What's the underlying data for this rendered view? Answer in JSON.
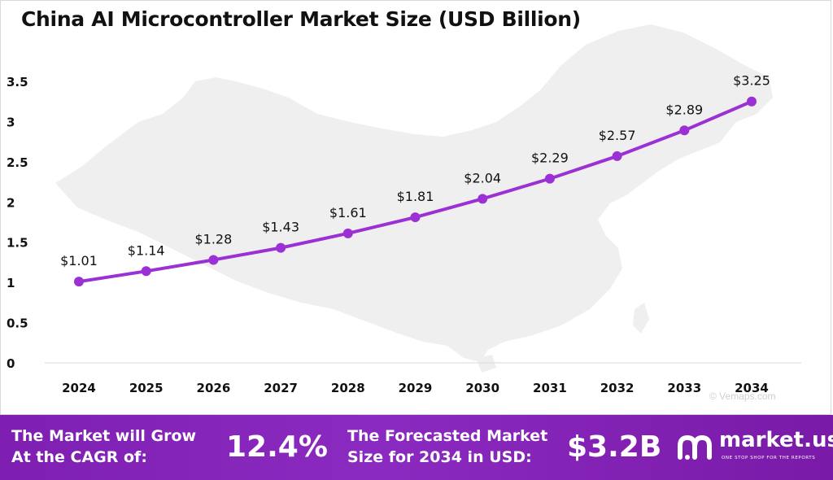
{
  "chart_data": {
    "type": "line",
    "title": "China AI Microcontroller Market Size (USD Billion)",
    "xlabel": "",
    "ylabel": "",
    "categories": [
      "2024",
      "2025",
      "2026",
      "2027",
      "2028",
      "2029",
      "2030",
      "2031",
      "2032",
      "2033",
      "2034"
    ],
    "values": [
      1.01,
      1.14,
      1.28,
      1.43,
      1.61,
      1.81,
      2.04,
      2.29,
      2.57,
      2.89,
      3.25
    ],
    "data_labels": [
      "$1.01",
      "$1.14",
      "$1.28",
      "$1.43",
      "$1.61",
      "$1.81",
      "$2.04",
      "$2.29",
      "$2.57",
      "$2.89",
      "$3.25"
    ],
    "yticks": [
      "0",
      "0.5",
      "1",
      "1.5",
      "2",
      "2.5",
      "3",
      "3.5"
    ],
    "ylim": [
      0,
      3.5
    ],
    "grid": false,
    "legend": "none",
    "line_color": "#9b30d4",
    "background": "map of China (light gray)"
  },
  "watermark": "© Vemaps.com",
  "banner": {
    "cagr_label_line1": "The Market will Grow",
    "cagr_label_line2": "At the CAGR of:",
    "cagr_value": "12.4%",
    "forecast_label_line1": "The Forecasted Market",
    "forecast_label_line2": "Size for 2034 in USD:",
    "forecast_value": "$3.2B",
    "logo_name": "market.us",
    "logo_tagline": "ONE STOP SHOP FOR THE REPORTS",
    "background_color": "#7e1fb2"
  }
}
